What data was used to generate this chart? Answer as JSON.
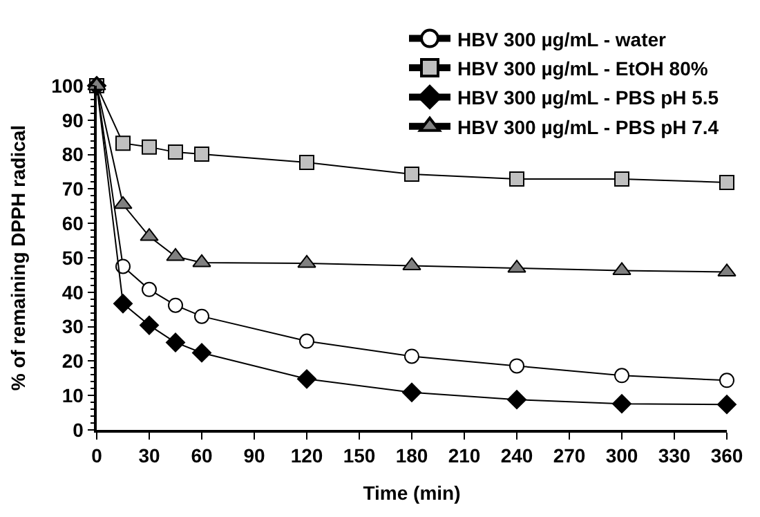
{
  "chart_data": {
    "type": "line",
    "xlabel": "Time (min)",
    "ylabel": "% of remaining DPPH radical",
    "x": [
      0,
      15,
      30,
      45,
      60,
      120,
      180,
      240,
      300,
      360
    ],
    "series": [
      {
        "name": "HBV 300 µg/mL - water",
        "color": "#ffffff",
        "marker": "circle",
        "values": [
          100,
          47.5,
          40.8,
          36.2,
          33,
          25.8,
          21.4,
          18.6,
          15.8,
          14.4
        ]
      },
      {
        "name": "HBV 300 µg/mL - EtOH 80%",
        "color": "#c0c0c0",
        "marker": "square",
        "values": [
          100,
          83.3,
          82.2,
          80.7,
          80.1,
          77.7,
          74.3,
          72.9,
          72.9,
          71.9
        ]
      },
      {
        "name": "HBV 300 µg/mL - PBS pH 5.5",
        "color": "#000000",
        "marker": "diamond",
        "values": [
          100,
          36.7,
          30.4,
          25.4,
          22.4,
          14.8,
          10.9,
          8.8,
          7.6,
          7.4
        ]
      },
      {
        "name": "HBV 300 µg/mL - PBS pH 7.4",
        "color": "#808080",
        "marker": "triangle",
        "values": [
          100,
          65.5,
          56.2,
          50.4,
          48.6,
          48.4,
          47.7,
          47.0,
          46.3,
          45.9
        ]
      }
    ],
    "xlim": [
      0,
      360
    ],
    "xticks": [
      0,
      30,
      60,
      90,
      120,
      150,
      180,
      210,
      240,
      270,
      300,
      330,
      360
    ],
    "ylim": [
      0,
      100
    ],
    "yticks": [
      0,
      10,
      20,
      30,
      40,
      50,
      60,
      70,
      80,
      90,
      100
    ],
    "legend": "top right",
    "line_style": "solid"
  }
}
